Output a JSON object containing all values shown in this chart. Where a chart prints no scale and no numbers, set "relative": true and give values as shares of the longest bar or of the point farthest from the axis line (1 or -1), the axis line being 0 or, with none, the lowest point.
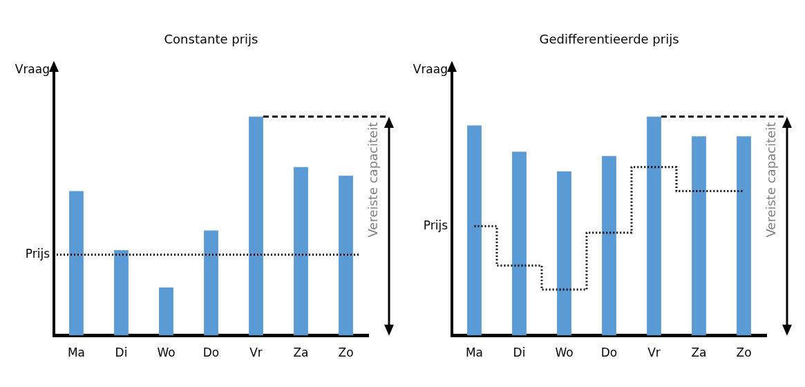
{
  "chart_data": [
    {
      "type": "bar",
      "title": "Constante prijs",
      "ylabel": "Vraag",
      "relative": true,
      "categories": [
        "Ma",
        "Di",
        "Wo",
        "Do",
        "Vr",
        "Za",
        "Zo"
      ],
      "values": [
        0.66,
        0.39,
        0.22,
        0.48,
        1,
        0.77,
        0.73
      ],
      "color": "#5b9bd5",
      "ref_lines": [
        {
          "axis": "y",
          "value": 0.37,
          "label": "Prijs",
          "line_style": "dotted",
          "color": "#000000"
        },
        {
          "axis": "y",
          "value": 1,
          "label": "Vereiste capaciteit",
          "line_style": "dashed",
          "color": "#000000"
        }
      ],
      "legend": false,
      "grid": false
    },
    {
      "type": "bar",
      "title": "Gedifferentieerde prijs",
      "ylabel": "Vraag",
      "relative": true,
      "categories": [
        "Ma",
        "Di",
        "Wo",
        "Do",
        "Vr",
        "Za",
        "Zo"
      ],
      "series": [
        {
          "color": "#5b9bd5",
          "values": [
            0.96,
            0.84,
            0.75,
            0.82,
            1,
            0.91,
            0.91
          ]
        },
        {
          "type": "step",
          "name": "Prijs",
          "color": "#000000",
          "line_style": "dotted",
          "values": [
            0.5,
            0.32,
            0.21,
            0.47,
            0.77,
            0.66,
            0.66
          ]
        }
      ],
      "ref_lines": [
        {
          "axis": "y",
          "value": 1,
          "label": "Vereiste capaciteit",
          "line_style": "dashed",
          "color": "#000000"
        }
      ],
      "legend": false,
      "grid": false
    }
  ]
}
